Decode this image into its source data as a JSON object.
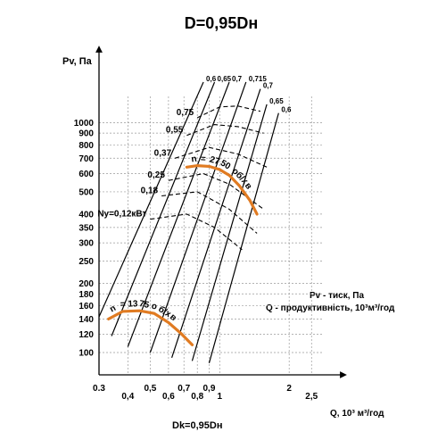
{
  "chart_data": {
    "type": "line",
    "title": "D=0,95Dн",
    "ylabel": "Pv, Па",
    "xlabel": "Q, 10³ м³/год",
    "footer": "Dk=0,95Dн",
    "legend": [
      "Pv - тиск, Па",
      "Q - продуктивність, 10³м³/год"
    ],
    "scale": "log-log",
    "xlim": [
      0.3,
      2.8
    ],
    "ylim": [
      80,
      1300
    ],
    "grid": true,
    "x_ticks": [
      0.3,
      0.4,
      0.5,
      0.6,
      0.7,
      0.8,
      0.9,
      1,
      2,
      2.5
    ],
    "x_tick_labels": [
      "0.3",
      "0,4",
      "0,5",
      "0,6",
      "0,7",
      "0,8",
      "0,9",
      "1",
      "2",
      "2,5"
    ],
    "y_ticks": [
      100,
      120,
      140,
      160,
      180,
      200,
      250,
      300,
      350,
      400,
      500,
      600,
      700,
      800,
      900,
      1000
    ],
    "y_tick_labels": [
      "100",
      "120",
      "140",
      "160",
      "180",
      "200",
      "250",
      "300",
      "350",
      "400",
      "500",
      "600",
      "700",
      "800",
      "900",
      "1000"
    ],
    "speed_curves": [
      {
        "name": "n = 2750 об/хв",
        "color": "#e07b22",
        "x": [
          0.72,
          0.8,
          0.9,
          1.0,
          1.1,
          1.22,
          1.35,
          1.45
        ],
        "y": [
          640,
          650,
          645,
          625,
          590,
          530,
          460,
          400
        ]
      },
      {
        "name": "n = 1375 об/хв",
        "color": "#e07b22",
        "x": [
          0.33,
          0.38,
          0.45,
          0.52,
          0.6,
          0.68,
          0.76
        ],
        "y": [
          140,
          151,
          152,
          148,
          135,
          121,
          108
        ]
      }
    ],
    "efficiency_lines": [
      {
        "name": "0,6",
        "x": [
          0.3,
          0.85
        ],
        "y": [
          143,
          1500
        ]
      },
      {
        "name": "0,65",
        "x": [
          0.34,
          0.95
        ],
        "y": [
          118,
          1500
        ]
      },
      {
        "name": "0,7",
        "x": [
          0.4,
          1.1
        ],
        "y": [
          106,
          1500
        ]
      },
      {
        "name": "0,715",
        "x": [
          0.5,
          1.3
        ],
        "y": [
          100,
          1500
        ]
      },
      {
        "name": "0,7",
        "x": [
          0.62,
          1.5
        ],
        "y": [
          95,
          1400
        ]
      },
      {
        "name": "0,65",
        "x": [
          0.76,
          1.6
        ],
        "y": [
          92,
          1200
        ]
      },
      {
        "name": "0,6",
        "x": [
          0.9,
          1.8
        ],
        "y": [
          90,
          1100
        ]
      }
    ],
    "power_curves": [
      {
        "name": "0,75",
        "x": [
          0.8,
          1.0,
          1.2,
          1.5
        ],
        "y": [
          1050,
          1170,
          1180,
          1120
        ]
      },
      {
        "name": "0,55",
        "x": [
          0.72,
          0.95,
          1.2,
          1.55
        ],
        "y": [
          880,
          980,
          960,
          900
        ]
      },
      {
        "name": "0,37",
        "x": [
          0.64,
          0.9,
          1.2,
          1.6
        ],
        "y": [
          700,
          780,
          730,
          640
        ]
      },
      {
        "name": "0,25",
        "x": [
          0.6,
          0.85,
          1.1,
          1.55
        ],
        "y": [
          560,
          600,
          540,
          420
        ]
      },
      {
        "name": "0,18",
        "x": [
          0.56,
          0.8,
          1.1,
          1.45
        ],
        "y": [
          480,
          500,
          420,
          330
        ]
      },
      {
        "name": "Ny=0,12кВт",
        "x": [
          0.5,
          0.72,
          0.95,
          1.25
        ],
        "y": [
          380,
          400,
          350,
          280
        ]
      }
    ]
  }
}
